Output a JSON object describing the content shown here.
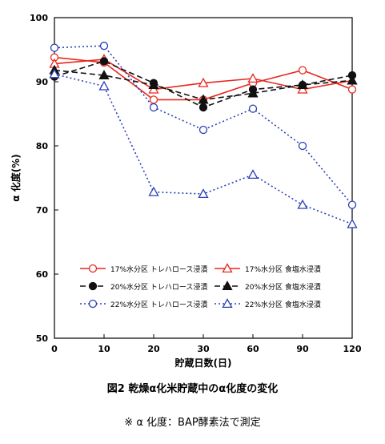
{
  "chart_data": {
    "type": "line",
    "categories": [
      "0",
      "10",
      "20",
      "30",
      "60",
      "90",
      "120"
    ],
    "ylabel": "α 化度(%)",
    "xlabel": "貯蔵日数(日)",
    "ylim": [
      50,
      100
    ],
    "yticks": [
      "50",
      "60",
      "70",
      "80",
      "90",
      "100"
    ],
    "legend_position": "bottom-inside",
    "series": [
      {
        "name": "17%水分区 トレハロース浸漬",
        "values": [
          93.8,
          93.0,
          87.2,
          87.2,
          89.8,
          91.8,
          88.8
        ],
        "color": "#e8281e",
        "marker": "circle-open",
        "dash": "solid"
      },
      {
        "name": "17%水分区 食塩水浸漬",
        "values": [
          92.8,
          93.5,
          88.8,
          89.8,
          90.5,
          88.8,
          90.2
        ],
        "color": "#e8281e",
        "marker": "triangle-open",
        "dash": "solid"
      },
      {
        "name": "20%水分区 トレハロース浸漬",
        "values": [
          90.8,
          93.2,
          89.8,
          86.0,
          88.8,
          89.5,
          91.0
        ],
        "color": "#111111",
        "marker": "circle-filled",
        "dash": "dash"
      },
      {
        "name": "20%水分区 食塩水浸漬",
        "values": [
          91.8,
          91.0,
          89.5,
          87.2,
          88.2,
          89.5,
          90.2
        ],
        "color": "#111111",
        "marker": "triangle-filled",
        "dash": "dash"
      },
      {
        "name": "22%水分区 トレハロース浸漬",
        "values": [
          95.3,
          95.6,
          86.0,
          82.5,
          85.8,
          80.0,
          70.8
        ],
        "color": "#2a3fb8",
        "marker": "circle-open",
        "dash": "dot"
      },
      {
        "name": "22%水分区 食塩水浸漬",
        "values": [
          91.2,
          89.3,
          72.8,
          72.5,
          75.5,
          70.8,
          67.8
        ],
        "color": "#2a3fb8",
        "marker": "triangle-open",
        "dash": "dot"
      }
    ]
  },
  "caption": "図2  乾燥α化米貯蔵中のα化度の変化",
  "note": "※ α 化度：BAP酵素法で測定"
}
